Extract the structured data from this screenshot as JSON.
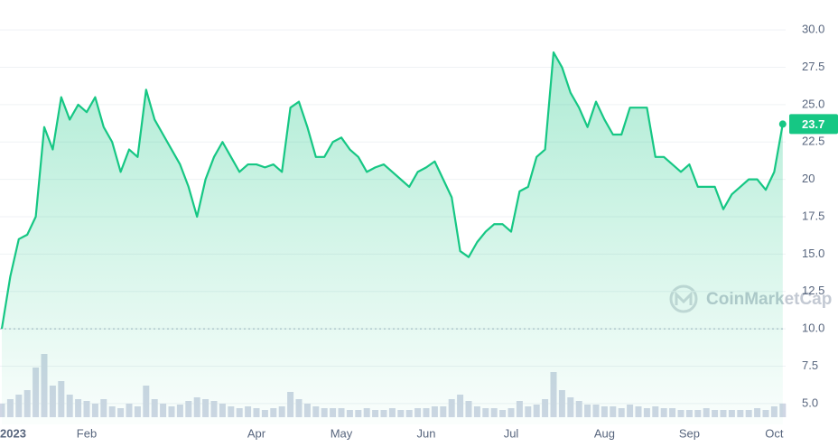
{
  "chart_data": {
    "type": "line",
    "categories": [
      "2023",
      null,
      null,
      null,
      null,
      null,
      null,
      null,
      null,
      null,
      "Feb",
      null,
      null,
      null,
      null,
      null,
      null,
      null,
      null,
      null,
      null,
      null,
      null,
      null,
      null,
      null,
      null,
      null,
      null,
      null,
      "Apr",
      null,
      null,
      null,
      null,
      null,
      null,
      null,
      null,
      null,
      "May",
      null,
      null,
      null,
      null,
      null,
      null,
      null,
      null,
      null,
      "Jun",
      null,
      null,
      null,
      null,
      null,
      null,
      null,
      null,
      null,
      "Jul",
      null,
      null,
      null,
      null,
      null,
      null,
      null,
      null,
      null,
      null,
      "Aug",
      null,
      null,
      null,
      null,
      null,
      null,
      null,
      null,
      null,
      "Sep",
      null,
      null,
      null,
      null,
      null,
      null,
      null,
      null,
      null,
      "Oct",
      null
    ],
    "values": [
      10.0,
      13.5,
      16.0,
      16.3,
      17.5,
      23.5,
      22.0,
      25.5,
      24.0,
      25.0,
      24.5,
      25.5,
      23.5,
      22.5,
      20.5,
      22.0,
      21.5,
      26.0,
      24.0,
      23.0,
      22.0,
      21.0,
      19.5,
      17.5,
      20.0,
      21.5,
      22.5,
      21.5,
      20.5,
      21.0,
      21.0,
      20.8,
      21.0,
      20.5,
      24.8,
      25.2,
      23.5,
      21.5,
      21.5,
      22.5,
      22.8,
      22.0,
      21.5,
      20.5,
      20.8,
      21.0,
      20.5,
      20.0,
      19.5,
      20.5,
      20.8,
      21.2,
      20.0,
      18.8,
      15.2,
      14.8,
      15.8,
      16.5,
      17.0,
      17.0,
      16.5,
      19.2,
      19.5,
      21.5,
      22.0,
      28.5,
      27.5,
      25.8,
      24.8,
      23.5,
      25.2,
      24.0,
      23.0,
      23.0,
      24.8,
      24.8,
      24.8,
      21.5,
      21.5,
      21.0,
      20.5,
      21.0,
      19.5,
      19.5,
      19.5,
      18.0,
      19.0,
      19.5,
      20.0,
      20.0,
      19.3,
      20.5,
      23.7
    ],
    "volume": [
      15,
      20,
      25,
      30,
      55,
      70,
      35,
      40,
      25,
      20,
      18,
      15,
      20,
      12,
      10,
      15,
      12,
      35,
      20,
      15,
      12,
      14,
      18,
      22,
      20,
      18,
      15,
      12,
      10,
      12,
      10,
      8,
      10,
      12,
      28,
      20,
      15,
      12,
      10,
      10,
      10,
      8,
      8,
      10,
      8,
      8,
      10,
      8,
      8,
      10,
      10,
      12,
      12,
      20,
      25,
      18,
      12,
      10,
      10,
      8,
      10,
      18,
      12,
      14,
      20,
      50,
      30,
      22,
      18,
      14,
      14,
      12,
      12,
      10,
      14,
      12,
      10,
      12,
      10,
      10,
      8,
      8,
      8,
      10,
      8,
      8,
      8,
      8,
      8,
      10,
      8,
      12,
      15
    ],
    "color": "#16c784",
    "volume_color": "#cfd6e4",
    "ylim": [
      3.6,
      31.4
    ],
    "yticks": [
      {
        "value": 30,
        "label": "30.0"
      },
      27.5,
      {
        "value": 25,
        "label": "25.0"
      },
      22.5,
      20,
      17.5,
      {
        "value": 15,
        "label": "15.0"
      },
      12.5,
      {
        "value": 10,
        "label": "10.0"
      },
      7.5,
      {
        "value": 5,
        "label": "5.0"
      }
    ],
    "grid": true,
    "watermark": "CoinMarketCap"
  }
}
